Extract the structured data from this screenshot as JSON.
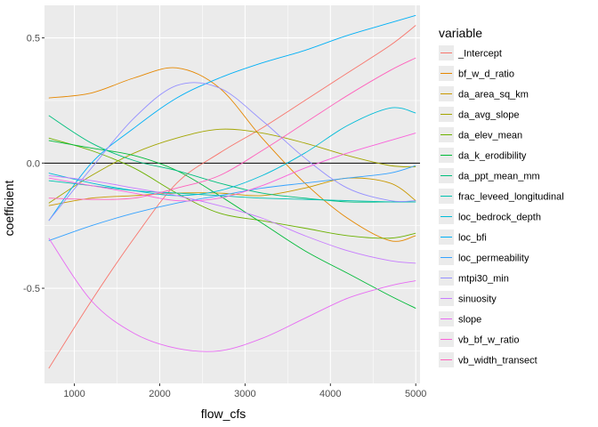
{
  "chart_data": {
    "type": "line",
    "xlabel": "flow_cfs",
    "ylabel": "coefficient",
    "xlim": [
      650,
      5050
    ],
    "ylim": [
      -0.88,
      0.63
    ],
    "xticks": [
      1000,
      2000,
      3000,
      4000,
      5000
    ],
    "xtick_labels": [
      "1000",
      "2000",
      "3000",
      "4000",
      "5000"
    ],
    "yticks": [
      -0.5,
      0.0,
      0.5
    ],
    "ytick_labels": [
      "-0.5",
      "0.0",
      "0.5"
    ],
    "hline": 0,
    "grid": true,
    "panel_background": "#ebebeb",
    "legend": {
      "title": "variable",
      "position": "right"
    },
    "x": [
      700,
      1200,
      1700,
      2200,
      2700,
      3200,
      3700,
      4200,
      4700,
      5000
    ],
    "series": [
      {
        "name": "_Intercept",
        "color": "#F8766D",
        "values": [
          -0.82,
          -0.55,
          -0.3,
          -0.08,
          0.04,
          0.14,
          0.25,
          0.36,
          0.47,
          0.55
        ]
      },
      {
        "name": "bf_w_d_ratio",
        "color": "#E58700",
        "values": [
          0.26,
          0.28,
          0.34,
          0.38,
          0.3,
          0.1,
          -0.08,
          -0.22,
          -0.31,
          -0.29
        ]
      },
      {
        "name": "da_area_sq_km",
        "color": "#C99800",
        "values": [
          -0.17,
          -0.14,
          -0.13,
          -0.12,
          -0.12,
          -0.13,
          -0.1,
          -0.06,
          -0.08,
          -0.15
        ]
      },
      {
        "name": "da_avg_slope",
        "color": "#A3A500",
        "values": [
          -0.16,
          -0.05,
          0.04,
          0.1,
          0.135,
          0.12,
          0.08,
          0.03,
          -0.01,
          -0.015
        ]
      },
      {
        "name": "da_elev_mean",
        "color": "#6BB100",
        "values": [
          0.1,
          0.05,
          -0.02,
          -0.12,
          -0.2,
          -0.23,
          -0.26,
          -0.29,
          -0.3,
          -0.28
        ]
      },
      {
        "name": "da_k_erodibility",
        "color": "#00BA38",
        "values": [
          0.09,
          0.06,
          0.03,
          -0.03,
          -0.13,
          -0.24,
          -0.35,
          -0.44,
          -0.53,
          -0.58
        ]
      },
      {
        "name": "da_ppt_mean_mm",
        "color": "#00BF7D",
        "values": [
          0.19,
          0.08,
          0.01,
          -0.03,
          -0.08,
          -0.12,
          -0.14,
          -0.155,
          -0.155,
          -0.155
        ]
      },
      {
        "name": "frac_leveed_longitudinal",
        "color": "#00C0AF",
        "values": [
          -0.07,
          -0.09,
          -0.11,
          -0.12,
          -0.13,
          -0.14,
          -0.145,
          -0.15,
          -0.155,
          -0.155
        ]
      },
      {
        "name": "loc_bedrock_depth",
        "color": "#00BCD8",
        "values": [
          -0.04,
          -0.08,
          -0.11,
          -0.13,
          -0.11,
          -0.05,
          0.04,
          0.15,
          0.22,
          0.2
        ]
      },
      {
        "name": "loc_bfi",
        "color": "#00B0F6",
        "values": [
          -0.23,
          0.0,
          0.14,
          0.26,
          0.34,
          0.4,
          0.45,
          0.51,
          0.56,
          0.59
        ]
      },
      {
        "name": "loc_permeability",
        "color": "#35A2FF",
        "values": [
          -0.31,
          -0.25,
          -0.2,
          -0.16,
          -0.13,
          -0.1,
          -0.08,
          -0.06,
          -0.04,
          -0.01
        ]
      },
      {
        "name": "mtpi30_min",
        "color": "#9590FF",
        "values": [
          -0.23,
          -0.02,
          0.18,
          0.31,
          0.3,
          0.17,
          0.02,
          -0.1,
          -0.15,
          -0.15
        ]
      },
      {
        "name": "sinuosity",
        "color": "#C77CFF",
        "values": [
          -0.05,
          -0.07,
          -0.1,
          -0.13,
          -0.17,
          -0.22,
          -0.29,
          -0.35,
          -0.39,
          -0.4
        ]
      },
      {
        "name": "slope",
        "color": "#E76BF3",
        "values": [
          -0.3,
          -0.55,
          -0.68,
          -0.74,
          -0.75,
          -0.7,
          -0.62,
          -0.54,
          -0.49,
          -0.47
        ]
      },
      {
        "name": "vb_bf_w_ratio",
        "color": "#FA62DB",
        "values": [
          -0.06,
          -0.09,
          -0.12,
          -0.15,
          -0.14,
          -0.09,
          -0.02,
          0.04,
          0.09,
          0.12
        ]
      },
      {
        "name": "vb_width_transect",
        "color": "#FF62BC",
        "values": [
          -0.14,
          -0.145,
          -0.14,
          -0.1,
          -0.05,
          0.05,
          0.16,
          0.27,
          0.37,
          0.42
        ]
      }
    ]
  }
}
